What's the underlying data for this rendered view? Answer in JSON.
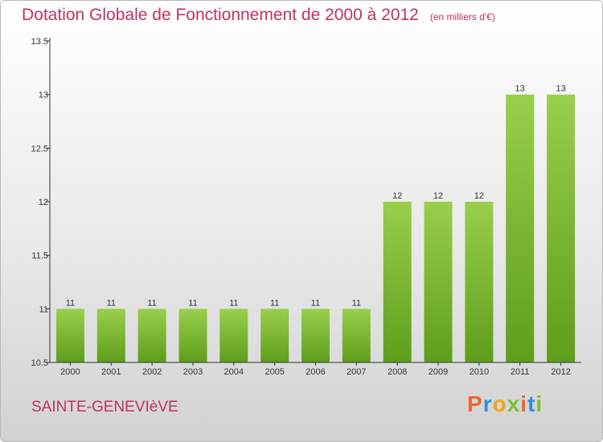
{
  "header": {
    "title": "Dotation Globale de Fonctionnement de 2000 à 2012",
    "unit": "(en milliers d'€)"
  },
  "footer": {
    "commune": "SAINTE-GENEVIèVE",
    "logo_letters": [
      "P",
      "r",
      "o",
      "x",
      "i",
      "t",
      "i"
    ],
    "logo_colors": [
      "#e8682c",
      "#2f8fd6",
      "#f2a31b",
      "#7cbe2d",
      "#e8682c",
      "#2f8fd6",
      "#7cbe2d"
    ]
  },
  "colors": {
    "bar_top": "#99cf4c",
    "bar_bottom": "#5d9e1b",
    "axis": "#333333",
    "title": "#c0306a"
  },
  "chart_data": {
    "type": "bar",
    "title": "Dotation Globale de Fonctionnement de 2000 à 2012",
    "subtitle": "(en milliers d'€)",
    "categories": [
      "2000",
      "2001",
      "2002",
      "2003",
      "2004",
      "2005",
      "2006",
      "2007",
      "2008",
      "2009",
      "2010",
      "2011",
      "2012"
    ],
    "values": [
      11,
      11,
      11,
      11,
      11,
      11,
      11,
      11,
      12,
      12,
      12,
      13,
      13
    ],
    "ylim": [
      10.5,
      13.5
    ],
    "yticks": [
      10.5,
      11,
      11.5,
      12,
      12.5,
      13,
      13.5
    ],
    "ytick_labels": [
      "10.5",
      "11",
      "11.5",
      "12",
      "12.5",
      "13",
      "13.5"
    ],
    "xlabel": "",
    "ylabel": "",
    "grid": false,
    "legend": "none"
  }
}
